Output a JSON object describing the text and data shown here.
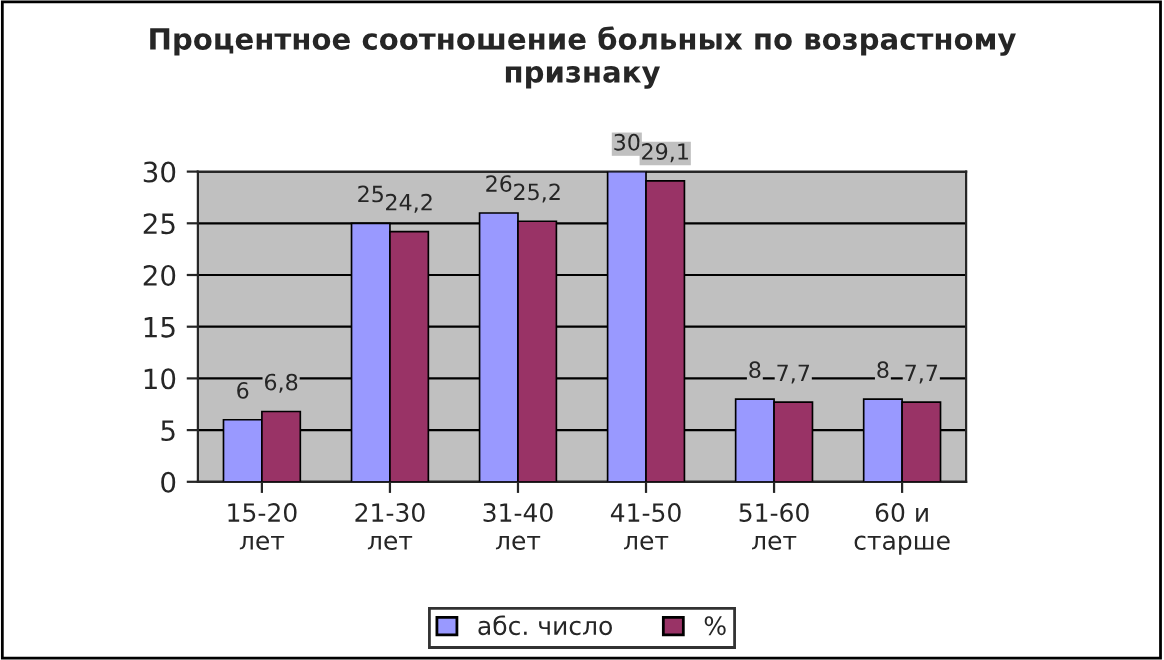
{
  "chart_data": {
    "type": "bar",
    "title": "Процентное соотношение больных по возрастному\nпризнаку",
    "categories": [
      "15-20\nлет",
      "21-30\nлет",
      "31-40\nлет",
      "41-50\nлет",
      "51-60\nлет",
      "60 и\nстарше"
    ],
    "series": [
      {
        "name": "абс. число",
        "color": "#9999ff",
        "values": [
          6,
          25,
          26,
          30,
          8,
          8
        ],
        "value_labels": [
          "6",
          "25",
          "26",
          "30",
          "8",
          "8"
        ]
      },
      {
        "name": "%",
        "color": "#993366",
        "values": [
          6.8,
          24.2,
          25.2,
          29.1,
          7.7,
          7.7
        ],
        "value_labels": [
          "6,8",
          "24,2",
          "25,2",
          "29,1",
          "7,7",
          "7,7"
        ]
      }
    ],
    "ylim": [
      0,
      30
    ],
    "yticks": [
      0,
      5,
      10,
      15,
      20,
      25,
      30
    ],
    "grid": "y",
    "legend": "bottom"
  }
}
